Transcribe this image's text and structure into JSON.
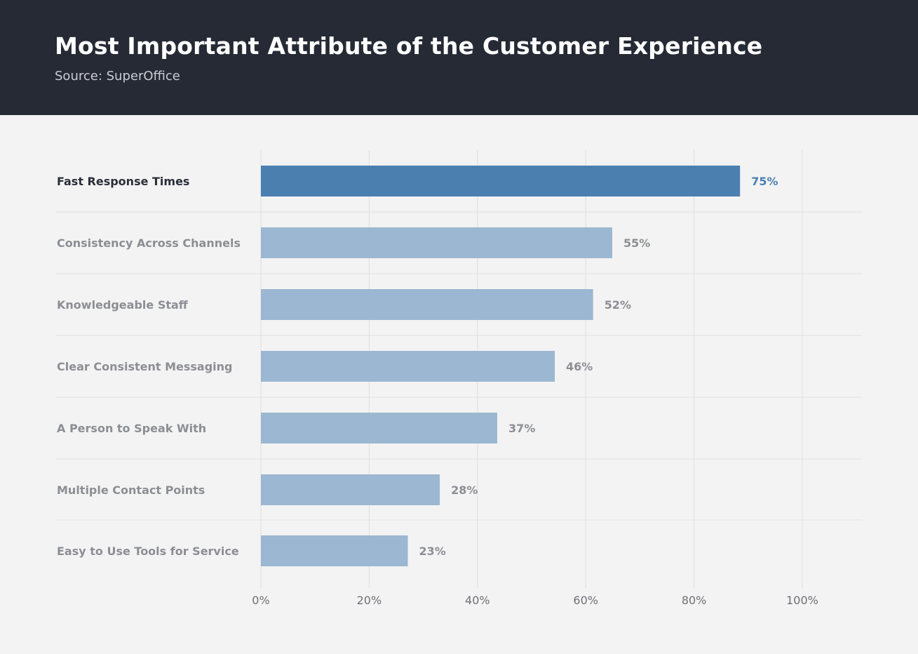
{
  "header": {
    "title": "Most Important Attribute of the Customer Experience",
    "subtitle": "Source: SuperOffice"
  },
  "colors": {
    "header_bg": "#252a35",
    "highlight_bar": "#4a7fb0",
    "bar": "#9cb7d1",
    "background": "#f4f3f3"
  },
  "chart_data": {
    "type": "bar",
    "orientation": "horizontal",
    "title": "Most Important Attribute of the Customer Experience",
    "subtitle": "Source: SuperOffice",
    "categories": [
      "Fast Response Times",
      "Consistency Across Channels",
      "Knowledgeable Staff",
      "Clear Consistent Messaging",
      "A Person to Speak With",
      "Multiple Contact Points",
      "Easy to Use Tools for Service"
    ],
    "values": [
      75,
      55,
      52,
      46,
      37,
      28,
      23
    ],
    "value_labels": [
      "75%",
      "55%",
      "52%",
      "46%",
      "37%",
      "28%",
      "23%"
    ],
    "highlighted_index": 0,
    "xlim": [
      0,
      100
    ],
    "xticks": [
      "0%",
      "20%",
      "40%",
      "60%",
      "80%",
      "100%"
    ],
    "grid": true,
    "legend": "none"
  }
}
